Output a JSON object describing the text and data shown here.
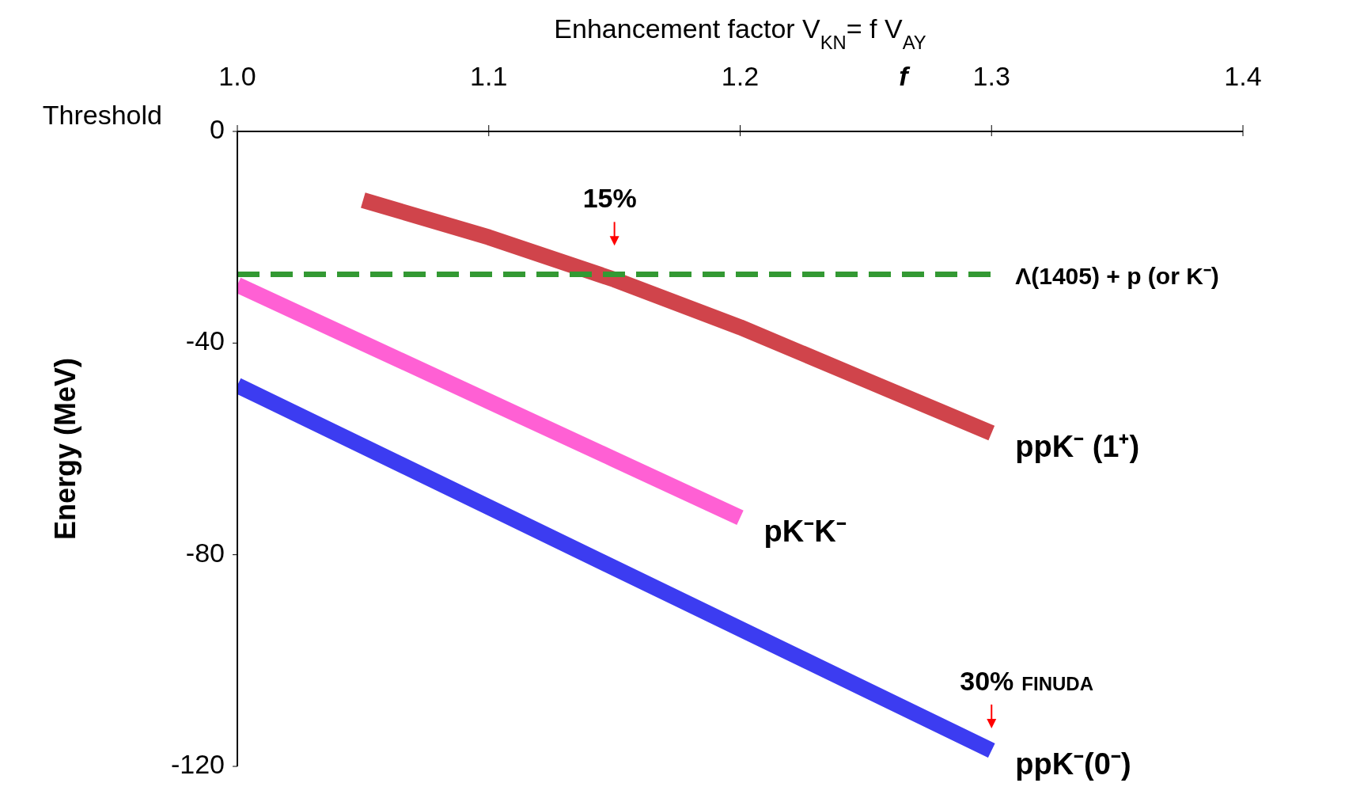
{
  "chart_data": {
    "type": "line",
    "title": "Enhancement factor  V$_{KN}$= f V$_{AY}$",
    "xlabel": "f",
    "ylabel": "Energy (MeV)",
    "xlim": [
      1.0,
      1.4
    ],
    "xticks": [
      {
        "value": 1.0,
        "label": "1.0"
      },
      {
        "value": 1.1,
        "label": "1.1"
      },
      {
        "value": 1.2,
        "label": "1.2"
      },
      {
        "value": 1.3,
        "label": "1.3"
      },
      {
        "value": 1.4,
        "label": "1.4"
      }
    ],
    "ylim": [
      -120,
      0
    ],
    "yticks": [
      0,
      -40,
      -80,
      -120
    ],
    "grid": false,
    "legend": false,
    "marker": "none",
    "series": [
      {
        "name": "ppK⁻ (1⁺)",
        "color": "#c8232c",
        "x": [
          1.05,
          1.1,
          1.15,
          1.2,
          1.25,
          1.3
        ],
        "values": [
          -13,
          -20,
          -28,
          -37,
          -47,
          -57
        ]
      },
      {
        "name": "pK⁻K⁻",
        "color": "#ff44cc",
        "x": [
          1.0,
          1.05,
          1.1,
          1.15,
          1.2
        ],
        "values": [
          -29,
          -40,
          -51,
          -62,
          -73
        ]
      },
      {
        "name": "ppK⁻(0⁻)",
        "color": "#1a1aee",
        "x": [
          1.0,
          1.1,
          1.2,
          1.3
        ],
        "values": [
          -48,
          -71,
          -94,
          -117
        ]
      },
      {
        "name": "Λ(1405) + p (or K⁻)",
        "color": "#339933",
        "x": [
          1.0,
          1.3
        ],
        "values": [
          -27,
          -27
        ],
        "line_style": "dashed"
      }
    ],
    "annotations": [
      "Threshold",
      "15%",
      "30% FINUDA"
    ]
  }
}
